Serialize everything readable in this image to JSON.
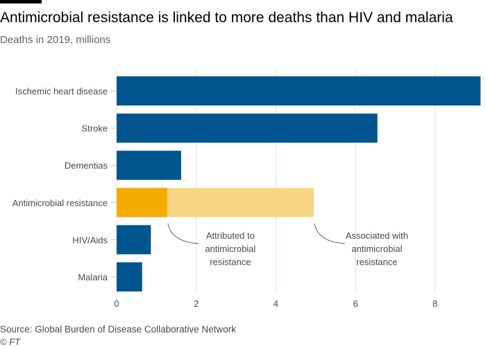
{
  "title": "Antimicrobial resistance is linked to more deaths than HIV and malaria",
  "subtitle": "Deaths in 2019, millions",
  "source": "Source: Global Burden of Disease Collaborative Network",
  "credit": "© FT",
  "chart_data": {
    "type": "bar",
    "orientation": "horizontal",
    "categories": [
      "Ischemic heart disease",
      "Stroke",
      "Dementias",
      "Antimicrobial resistance",
      "HIV/Aids",
      "Malaria"
    ],
    "values": [
      9.14,
      6.55,
      1.62,
      4.95,
      0.86,
      0.64
    ],
    "amr_attributed": 1.27,
    "amr_associated": 4.95,
    "xlim": [
      0,
      9.15
    ],
    "xticks": [
      0,
      2,
      4,
      6,
      8
    ],
    "grid": true,
    "annotations": [
      {
        "text": [
          "Attributed to",
          "antimicrobial",
          "resistance"
        ],
        "x": 1.27
      },
      {
        "text": [
          "Associated with",
          "antimicrobial",
          "resistance"
        ],
        "x": 4.95
      }
    ],
    "colors": {
      "bar": "#00558f",
      "attributed": "#f5ab00",
      "associated": "#f8d582",
      "grid": "#e9dfd7"
    }
  }
}
